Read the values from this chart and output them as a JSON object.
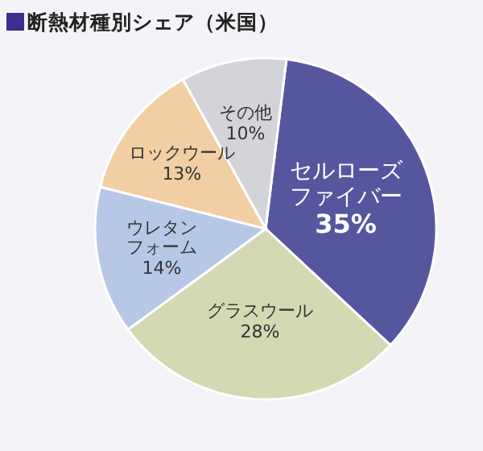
{
  "chart_data": {
    "type": "pie",
    "title": "断熱材種別シェア（米国）",
    "categories": [
      "セルローズファイバー",
      "グラスウール",
      "ウレタンフォーム",
      "ロックウール",
      "その他"
    ],
    "value_labels": [
      "35%",
      "28%",
      "14%",
      "13%",
      "10%"
    ],
    "values": [
      35,
      28,
      14,
      13,
      10
    ],
    "colors": [
      "#56569f",
      "#d4d9b4",
      "#b7c8e6",
      "#f1cfa2",
      "#d3d4da"
    ]
  }
}
